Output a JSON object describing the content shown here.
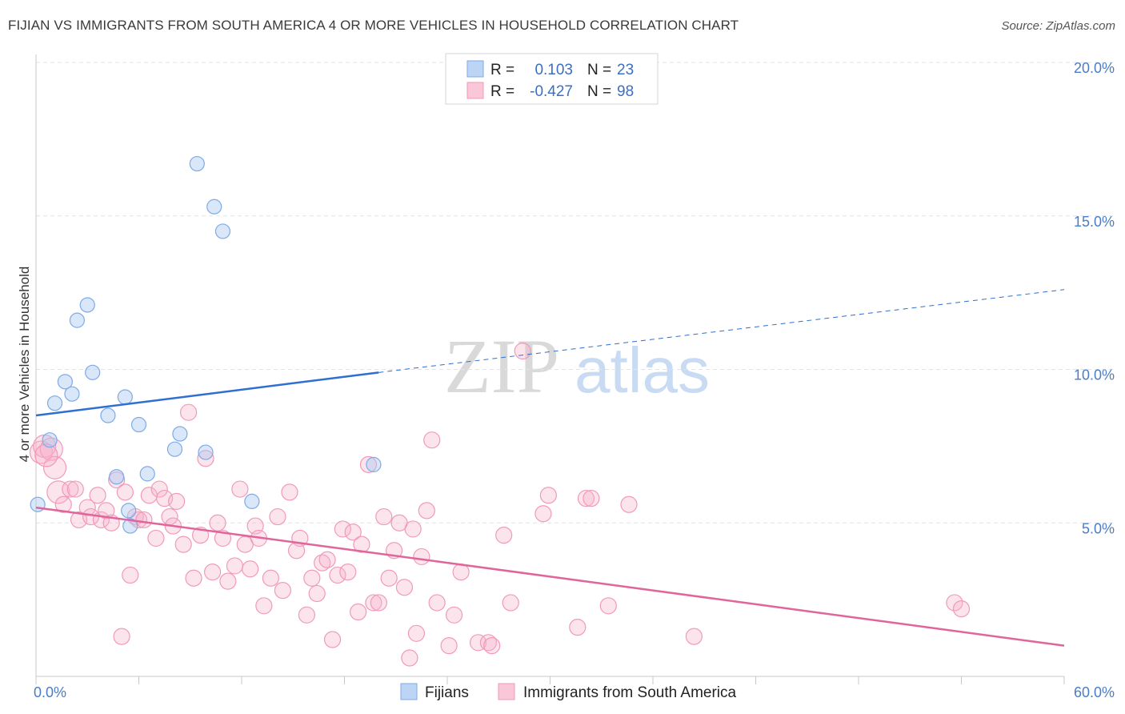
{
  "header": {
    "title": "FIJIAN VS IMMIGRANTS FROM SOUTH AMERICA 4 OR MORE VEHICLES IN HOUSEHOLD CORRELATION CHART",
    "source": "Source: ZipAtlas.com"
  },
  "watermark": {
    "zip": "ZIP",
    "atlas": "atlas"
  },
  "legend": {
    "r_label": "R =",
    "n_label": "N =",
    "rows": [
      {
        "r": "0.103",
        "n": "23"
      },
      {
        "r": "-0.427",
        "n": "98"
      }
    ]
  },
  "chart_data": {
    "type": "scatter",
    "title": "FIJIAN VS IMMIGRANTS FROM SOUTH AMERICA 4 OR MORE VEHICLES IN HOUSEHOLD CORRELATION CHART",
    "ylabel": "4 or more Vehicles in Household",
    "xlabel": "",
    "xlim": [
      0,
      60
    ],
    "ylim": [
      0,
      20
    ],
    "x_tick_labels": [
      "0.0%",
      "60.0%"
    ],
    "y_ticks": [
      {
        "value": 5,
        "label": "5.0%"
      },
      {
        "value": 10,
        "label": "10.0%"
      },
      {
        "value": 15,
        "label": "15.0%"
      },
      {
        "value": 20,
        "label": "20.0%"
      }
    ],
    "grid": true,
    "legend_position": "top-center",
    "colors": {
      "fijians": "#7eaae8",
      "immigrants": "#f09ab8",
      "fijians_line": "#2f6fd1",
      "immigrants_line": "#e0659a"
    },
    "series": [
      {
        "name": "Fijians",
        "r": 0.103,
        "n": 23,
        "trend": {
          "x0": 0,
          "y0": 8.5,
          "x1": 20,
          "y1": 9.9,
          "dash_x1": 60,
          "dash_y1": 12.6
        },
        "points": [
          [
            0.1,
            5.6
          ],
          [
            0.8,
            7.7
          ],
          [
            1.1,
            8.9
          ],
          [
            1.7,
            9.6
          ],
          [
            2.1,
            9.2
          ],
          [
            2.4,
            11.6
          ],
          [
            3.0,
            12.1
          ],
          [
            3.3,
            9.9
          ],
          [
            4.2,
            8.5
          ],
          [
            4.7,
            6.5
          ],
          [
            5.2,
            9.1
          ],
          [
            5.4,
            5.4
          ],
          [
            5.5,
            4.9
          ],
          [
            6.0,
            8.2
          ],
          [
            6.5,
            6.6
          ],
          [
            8.1,
            7.4
          ],
          [
            8.4,
            7.9
          ],
          [
            9.4,
            16.7
          ],
          [
            9.9,
            7.3
          ],
          [
            10.4,
            15.3
          ],
          [
            10.9,
            14.5
          ],
          [
            12.6,
            5.7
          ],
          [
            19.7,
            6.9
          ]
        ]
      },
      {
        "name": "Immigrants from South America",
        "r": -0.427,
        "n": 98,
        "trend": {
          "x0": 0,
          "y0": 5.5,
          "x1": 60,
          "y1": 1.0
        },
        "points": [
          [
            0.3,
            7.3
          ],
          [
            0.5,
            7.5
          ],
          [
            0.9,
            7.4
          ],
          [
            1.1,
            6.8
          ],
          [
            1.3,
            6.0
          ],
          [
            1.6,
            5.6
          ],
          [
            2.0,
            6.1
          ],
          [
            2.3,
            6.1
          ],
          [
            2.5,
            5.1
          ],
          [
            3.0,
            5.5
          ],
          [
            3.2,
            5.2
          ],
          [
            3.6,
            5.9
          ],
          [
            3.8,
            5.1
          ],
          [
            4.1,
            5.4
          ],
          [
            4.4,
            5.0
          ],
          [
            4.7,
            6.4
          ],
          [
            5.0,
            1.3
          ],
          [
            5.2,
            6.0
          ],
          [
            5.5,
            3.3
          ],
          [
            5.8,
            5.2
          ],
          [
            6.0,
            5.1
          ],
          [
            6.3,
            5.1
          ],
          [
            6.6,
            5.9
          ],
          [
            7.0,
            4.5
          ],
          [
            7.2,
            6.1
          ],
          [
            7.5,
            5.8
          ],
          [
            7.8,
            5.2
          ],
          [
            8.0,
            4.9
          ],
          [
            8.2,
            5.7
          ],
          [
            8.6,
            4.3
          ],
          [
            8.9,
            8.6
          ],
          [
            9.2,
            3.2
          ],
          [
            9.6,
            4.6
          ],
          [
            9.9,
            7.1
          ],
          [
            10.3,
            3.4
          ],
          [
            10.6,
            5.0
          ],
          [
            10.9,
            4.5
          ],
          [
            11.2,
            3.1
          ],
          [
            11.6,
            3.6
          ],
          [
            11.9,
            6.1
          ],
          [
            12.2,
            4.3
          ],
          [
            12.5,
            3.5
          ],
          [
            12.8,
            4.9
          ],
          [
            13.0,
            4.5
          ],
          [
            13.3,
            2.3
          ],
          [
            13.7,
            3.2
          ],
          [
            14.1,
            5.2
          ],
          [
            14.4,
            2.8
          ],
          [
            14.8,
            6.0
          ],
          [
            15.2,
            4.1
          ],
          [
            15.4,
            4.5
          ],
          [
            15.8,
            2.0
          ],
          [
            16.1,
            3.2
          ],
          [
            16.4,
            2.7
          ],
          [
            16.7,
            3.7
          ],
          [
            17.0,
            3.8
          ],
          [
            17.3,
            1.2
          ],
          [
            17.6,
            3.3
          ],
          [
            17.9,
            4.8
          ],
          [
            18.2,
            3.4
          ],
          [
            18.5,
            4.7
          ],
          [
            18.8,
            2.1
          ],
          [
            19.0,
            4.3
          ],
          [
            19.4,
            6.9
          ],
          [
            19.7,
            2.4
          ],
          [
            20.0,
            2.4
          ],
          [
            20.3,
            5.2
          ],
          [
            20.6,
            3.2
          ],
          [
            20.9,
            4.1
          ],
          [
            21.2,
            5.0
          ],
          [
            21.5,
            2.9
          ],
          [
            21.8,
            0.6
          ],
          [
            22.0,
            4.8
          ],
          [
            22.2,
            1.4
          ],
          [
            22.5,
            3.9
          ],
          [
            22.8,
            5.4
          ],
          [
            23.1,
            7.7
          ],
          [
            23.4,
            2.4
          ],
          [
            24.1,
            1.0
          ],
          [
            24.4,
            2.0
          ],
          [
            24.8,
            3.4
          ],
          [
            25.8,
            1.1
          ],
          [
            26.4,
            1.1
          ],
          [
            26.6,
            1.0
          ],
          [
            27.3,
            4.6
          ],
          [
            27.7,
            2.4
          ],
          [
            28.4,
            10.6
          ],
          [
            29.6,
            5.3
          ],
          [
            29.9,
            5.9
          ],
          [
            31.6,
            1.6
          ],
          [
            32.1,
            5.8
          ],
          [
            32.4,
            5.8
          ],
          [
            33.4,
            2.3
          ],
          [
            34.6,
            5.6
          ],
          [
            38.4,
            1.3
          ],
          [
            53.6,
            2.4
          ],
          [
            54.0,
            2.2
          ],
          [
            0.6,
            7.2
          ]
        ]
      }
    ]
  },
  "bottom_legend": {
    "fijians_label": "Fijians",
    "immigrants_label": "Immigrants from South America"
  }
}
